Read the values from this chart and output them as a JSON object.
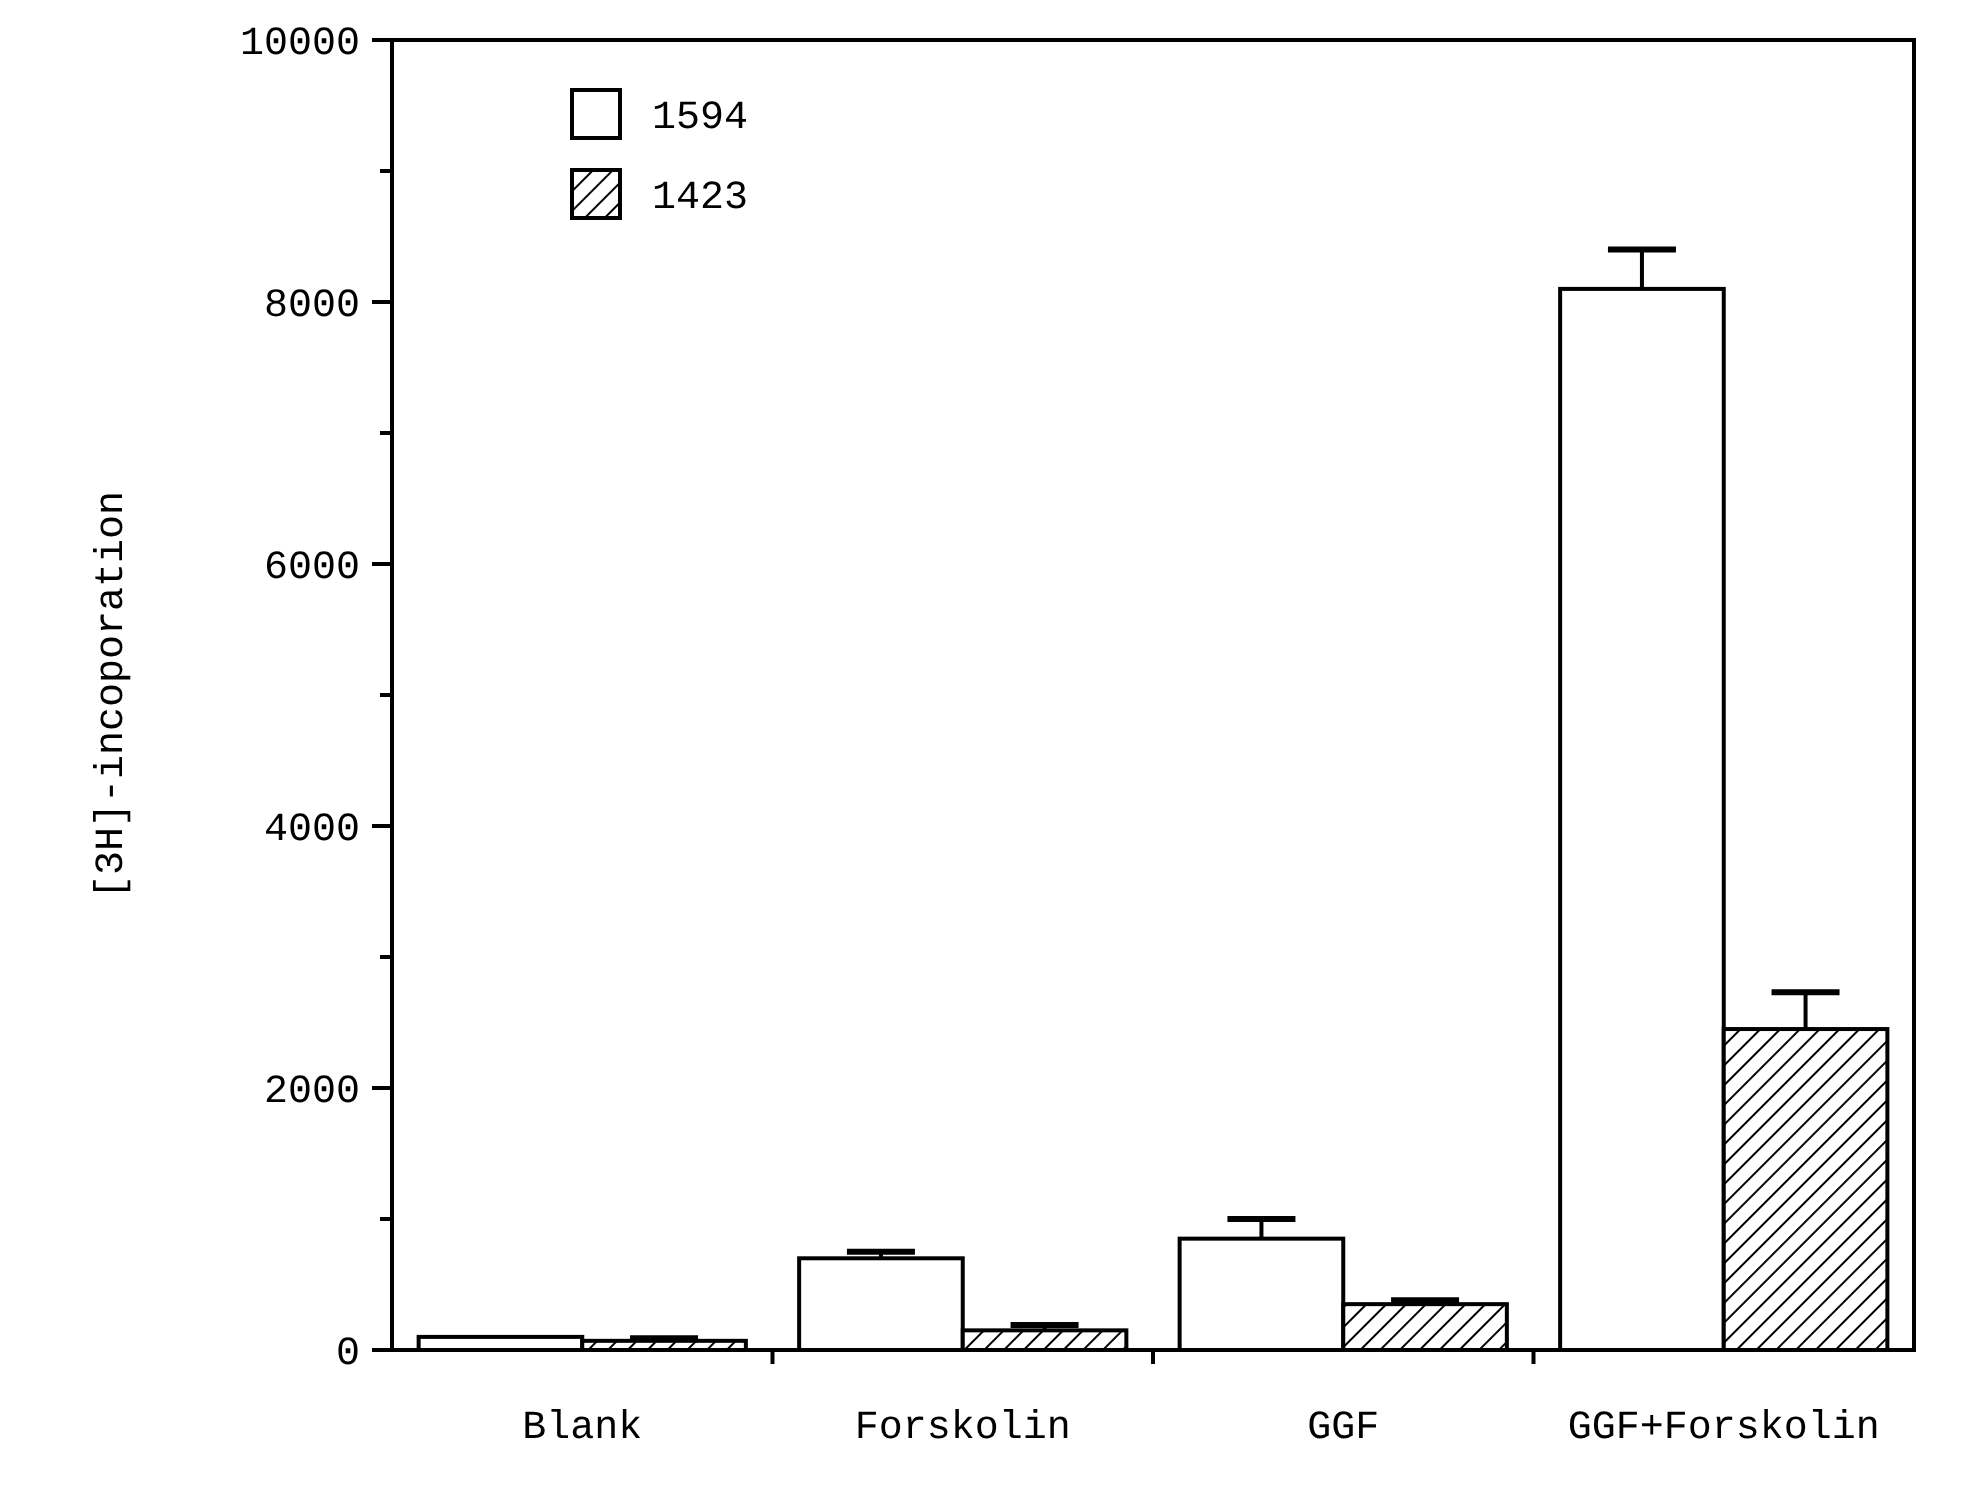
{
  "chart_data": {
    "type": "bar",
    "ylabel": "[3H]-incoporation",
    "categories": [
      "Blank",
      "Forskolin",
      "GGF",
      "GGF+Forskolin"
    ],
    "series": [
      {
        "name": "1594",
        "color": "#ffffff",
        "values": [
          100,
          700,
          850,
          8100
        ],
        "errors": [
          null,
          50,
          150,
          300
        ]
      },
      {
        "name": "1423",
        "color": "#000000",
        "values": [
          70,
          150,
          350,
          2450
        ],
        "errors": [
          20,
          40,
          30,
          280
        ]
      }
    ],
    "ylim": [
      0,
      10000
    ],
    "yticks": [
      0,
      {
        "value": 1000,
        "label": null
      },
      2000,
      {
        "value": 3000,
        "label": null
      },
      4000,
      {
        "value": 5000,
        "label": null
      },
      6000,
      {
        "value": 7000,
        "label": null
      },
      8000,
      {
        "value": 9000,
        "label": null
      },
      10000
    ],
    "grid": false,
    "legend": "top left"
  }
}
